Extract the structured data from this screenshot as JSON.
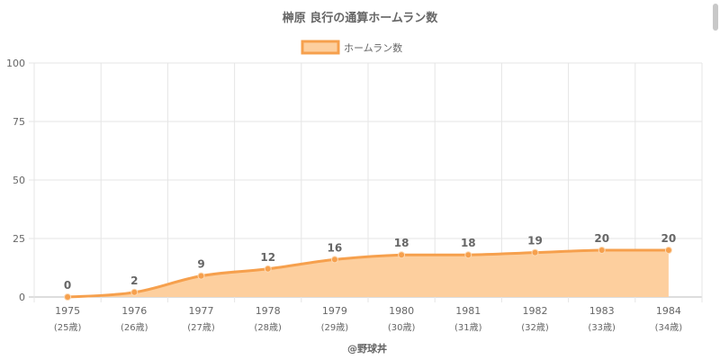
{
  "chart_data": {
    "type": "area",
    "title": "榊原 良行の通算ホームラン数",
    "legend": {
      "label": "ホームラン数",
      "placement": "top-center"
    },
    "categories": [
      "1975",
      "1976",
      "1977",
      "1978",
      "1979",
      "1980",
      "1981",
      "1982",
      "1983",
      "1984"
    ],
    "age_labels": [
      "(25歳)",
      "(26歳)",
      "(27歳)",
      "(28歳)",
      "(29歳)",
      "(30歳)",
      "(31歳)",
      "(32歳)",
      "(33歳)",
      "(34歳)"
    ],
    "series": [
      {
        "name": "ホームラン数",
        "values": [
          0,
          2,
          9,
          12,
          16,
          18,
          18,
          19,
          20,
          20
        ]
      }
    ],
    "ylim": [
      0,
      100
    ],
    "yticks": [
      0,
      25,
      50,
      75,
      100
    ],
    "grid": true,
    "colors": {
      "line": "#f6a04d",
      "fill": "#fdcf9e",
      "grid": "#e5e5e5",
      "axis": "#bbbbbb"
    }
  },
  "credit": "@野球丼"
}
